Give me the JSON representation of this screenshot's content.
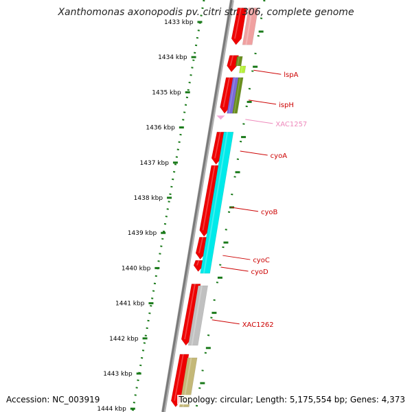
{
  "header": {
    "title": "Xanthomonas axonopodis pv. citri str. 306, complete genome"
  },
  "footer": {
    "accession": "Accession: NC_003919",
    "topology": "Topology: circular; Length: 5,175,554 bp; Genes: 4,373"
  },
  "colors": {
    "backbone": "#7a7a7a",
    "tick": "#1a7a1a",
    "cds_forward": "#ee0000",
    "gene_label": "#cc0000",
    "pink_label": "#ee88bb"
  },
  "chart_data": {
    "type": "genome-map",
    "ticks": [
      {
        "kbp": 1433,
        "label": "1433 kbp"
      },
      {
        "kbp": 1434,
        "label": "1434 kbp"
      },
      {
        "kbp": 1435,
        "label": "1435 kbp"
      },
      {
        "kbp": 1436,
        "label": "1436 kbp"
      },
      {
        "kbp": 1437,
        "label": "1437 kbp"
      },
      {
        "kbp": 1438,
        "label": "1438 kbp"
      },
      {
        "kbp": 1439,
        "label": "1439 kbp"
      },
      {
        "kbp": 1440,
        "label": "1440 kbp"
      },
      {
        "kbp": 1441,
        "label": "1441 kbp"
      },
      {
        "kbp": 1442,
        "label": "1442 kbp"
      },
      {
        "kbp": 1443,
        "label": "1443 kbp"
      },
      {
        "kbp": 1444,
        "label": "1444 kbp"
      }
    ],
    "cds": [
      {
        "start": 1432.6,
        "end": 1433.65
      },
      {
        "start": 1433.95,
        "end": 1434.42
      },
      {
        "start": 1434.58,
        "end": 1435.6
      },
      {
        "start": 1436.13,
        "end": 1437.05
      },
      {
        "start": 1437.08,
        "end": 1439.1
      },
      {
        "start": 1439.12,
        "end": 1439.75
      },
      {
        "start": 1439.78,
        "end": 1440.1
      },
      {
        "start": 1440.45,
        "end": 1442.2
      },
      {
        "start": 1442.45,
        "end": 1443.95
      }
    ],
    "features": [
      {
        "start": 1432.6,
        "end": 1433.65,
        "color": "#f0a0a0"
      },
      {
        "start": 1433.98,
        "end": 1434.25,
        "color": "#6a8f1e"
      },
      {
        "start": 1434.25,
        "end": 1434.45,
        "color": "#b6f03a"
      },
      {
        "start": 1434.58,
        "end": 1435.6,
        "color": "#7a6ad8"
      },
      {
        "start": 1434.58,
        "end": 1435.6,
        "color": "#6a8f1e"
      },
      {
        "start": 1436.13,
        "end": 1440.15,
        "color": "#00eaea"
      },
      {
        "start": 1440.5,
        "end": 1442.2,
        "color": "#c0c0c0"
      },
      {
        "start": 1442.55,
        "end": 1443.95,
        "color": "#c4b878"
      }
    ],
    "pink_mark": {
      "kbp": 1435.72
    },
    "labels": [
      {
        "text": "lspA",
        "kbp": 1434.45,
        "kind": "red"
      },
      {
        "text": "ispH",
        "kbp": 1435.3,
        "kind": "red"
      },
      {
        "text": "XAC1257",
        "kbp": 1435.85,
        "kind": "pink"
      },
      {
        "text": "cyoA",
        "kbp": 1436.75,
        "kind": "red"
      },
      {
        "text": "cyoB",
        "kbp": 1438.35,
        "kind": "red"
      },
      {
        "text": "cyoC",
        "kbp": 1439.72,
        "kind": "red"
      },
      {
        "text": "cyoD",
        "kbp": 1440.05,
        "kind": "red"
      },
      {
        "text": "XAC1262",
        "kbp": 1441.55,
        "kind": "red"
      }
    ]
  }
}
